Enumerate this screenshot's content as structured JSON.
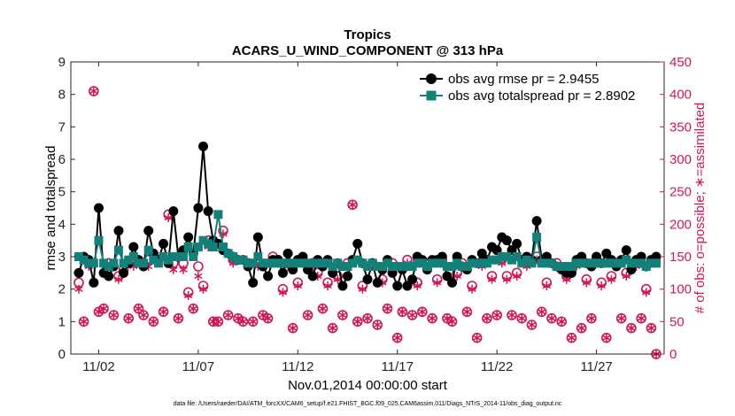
{
  "chart_data": {
    "type": "line",
    "title": "Tropics",
    "subtitle": "ACARS_U_WIND_COMPONENT @ 313 hPa",
    "xlabel": "Nov.01,2014 00:00:00 start",
    "ylabel": "rmse and totalspread",
    "ylabel_right": "# of obs: o=possible; ∗=assimilated",
    "footnote": "data file: /Users/raeder/DAI/ATM_forcXX/CAM6_setup/f.e21.FHIST_BGC.f09_025.CAM6assim.011/Diags_NTrS_2014-11/obs_diag_output.nc",
    "xlim": [
      0.6,
      30.4
    ],
    "ylim": [
      0,
      9
    ],
    "ylim_right": [
      0,
      450
    ],
    "x_ticks": [
      2,
      7,
      12,
      17,
      22,
      27
    ],
    "x_tick_labels": [
      "11/02",
      "11/07",
      "11/12",
      "11/17",
      "11/22",
      "11/27"
    ],
    "y_ticks": [
      0,
      1,
      2,
      3,
      4,
      5,
      6,
      7,
      8,
      9
    ],
    "y_tick_labels": [
      "0",
      "1",
      "2",
      "3",
      "4",
      "5",
      "6",
      "7",
      "8",
      "9"
    ],
    "y_ticks_right": [
      0,
      50,
      100,
      150,
      200,
      250,
      300,
      350,
      400,
      450
    ],
    "y_tick_labels_right": [
      "0",
      "50",
      "100",
      "150",
      "200",
      "250",
      "300",
      "350",
      "400",
      "450"
    ],
    "colors": {
      "rmse": "#000000",
      "spread": "#138079",
      "obs": "#cc1757"
    },
    "x": [
      1.0,
      1.25,
      1.5,
      1.75,
      2.0,
      2.25,
      2.5,
      2.75,
      3.0,
      3.25,
      3.5,
      3.75,
      4.0,
      4.25,
      4.5,
      4.75,
      5.0,
      5.25,
      5.5,
      5.75,
      6.0,
      6.25,
      6.5,
      6.75,
      7.0,
      7.25,
      7.5,
      7.75,
      8.0,
      8.25,
      8.5,
      8.75,
      9.0,
      9.25,
      9.5,
      9.75,
      10.0,
      10.25,
      10.5,
      10.75,
      11.0,
      11.25,
      11.5,
      11.75,
      12.0,
      12.25,
      12.5,
      12.75,
      13.0,
      13.25,
      13.5,
      13.75,
      14.0,
      14.25,
      14.5,
      14.75,
      15.0,
      15.25,
      15.5,
      15.75,
      16.0,
      16.25,
      16.5,
      16.75,
      17.0,
      17.25,
      17.5,
      17.75,
      18.0,
      18.25,
      18.5,
      18.75,
      19.0,
      19.25,
      19.5,
      19.75,
      20.0,
      20.25,
      20.5,
      20.75,
      21.0,
      21.25,
      21.5,
      21.75,
      22.0,
      22.25,
      22.5,
      22.75,
      23.0,
      23.25,
      23.5,
      23.75,
      24.0,
      24.25,
      24.5,
      24.75,
      25.0,
      25.25,
      25.5,
      25.75,
      26.0,
      26.25,
      26.5,
      26.75,
      27.0,
      27.25,
      27.5,
      27.75,
      28.0,
      28.25,
      28.5,
      28.75,
      29.0,
      29.25,
      29.5,
      29.75,
      30.0
    ],
    "series": [
      {
        "name": "obs avg rmse",
        "legend_label": "obs avg rmse pr = 2.9455",
        "axis": "left",
        "marker": "filled-circle",
        "values": [
          2.5,
          3.0,
          2.9,
          2.2,
          4.5,
          2.5,
          2.4,
          2.7,
          3.8,
          2.5,
          2.8,
          3.3,
          2.9,
          2.7,
          3.8,
          3.1,
          2.9,
          3.4,
          2.8,
          4.4,
          3.0,
          3.2,
          3.6,
          3.1,
          4.5,
          6.4,
          4.4,
          3.5,
          3.4,
          3.2,
          3.1,
          3.0,
          2.9,
          2.9,
          2.7,
          2.2,
          3.6,
          2.7,
          2.4,
          2.9,
          2.9,
          2.5,
          3.1,
          2.6,
          2.9,
          3.0,
          2.6,
          2.4,
          2.9,
          2.7,
          2.9,
          2.5,
          2.8,
          2.1,
          2.4,
          2.9,
          3.4,
          2.8,
          2.3,
          2.8,
          2.2,
          2.6,
          2.9,
          2.5,
          2.1,
          2.6,
          2.1,
          2.3,
          3.0,
          2.9,
          2.6,
          2.9,
          2.9,
          3.0,
          2.4,
          2.2,
          3.0,
          2.7,
          2.6,
          2.9,
          2.8,
          3.1,
          2.9,
          3.3,
          3.2,
          3.6,
          3.5,
          3.2,
          3.4,
          2.9,
          3.0,
          2.9,
          4.1,
          2.9,
          3.0,
          2.8,
          2.7,
          2.6,
          2.5,
          2.5,
          2.9,
          3.0,
          2.8,
          2.7,
          3.0,
          2.8,
          3.1,
          2.9,
          2.7,
          2.9,
          3.2,
          2.6,
          2.9,
          3.0,
          2.7,
          2.9,
          3.0
        ]
      },
      {
        "name": "obs avg totalspread",
        "legend_label": "obs avg totalspread pr = 2.8902",
        "axis": "left",
        "marker": "filled-square",
        "values": [
          3.0,
          2.9,
          2.8,
          2.8,
          3.5,
          2.8,
          2.7,
          2.8,
          3.2,
          2.8,
          2.9,
          3.0,
          2.8,
          2.8,
          3.2,
          2.9,
          2.8,
          3.0,
          2.9,
          3.0,
          3.0,
          3.0,
          3.3,
          3.0,
          3.3,
          3.5,
          3.4,
          3.3,
          4.3,
          3.3,
          3.1,
          3.0,
          2.9,
          2.9,
          2.8,
          2.8,
          3.0,
          2.8,
          2.8,
          2.8,
          2.8,
          2.8,
          2.8,
          2.8,
          2.8,
          2.8,
          2.8,
          2.8,
          2.8,
          2.8,
          2.8,
          2.7,
          2.8,
          2.7,
          2.7,
          2.8,
          2.9,
          2.8,
          2.7,
          2.8,
          2.7,
          2.7,
          2.8,
          2.7,
          2.7,
          2.7,
          2.7,
          2.7,
          2.8,
          2.8,
          2.7,
          2.8,
          2.8,
          2.8,
          2.7,
          2.7,
          2.8,
          2.7,
          2.7,
          2.8,
          2.8,
          2.8,
          2.8,
          2.9,
          2.9,
          3.0,
          3.0,
          2.9,
          3.0,
          2.8,
          2.9,
          2.8,
          3.6,
          2.8,
          2.8,
          2.8,
          2.7,
          2.7,
          2.7,
          2.7,
          2.8,
          2.8,
          2.8,
          2.8,
          2.8,
          2.8,
          2.8,
          2.8,
          2.8,
          2.8,
          2.9,
          2.8,
          2.8,
          2.8,
          2.7,
          2.8,
          2.8
        ]
      },
      {
        "name": "obs possible",
        "axis": "right",
        "marker": "open-circle",
        "values": [
          110,
          50,
          140,
          405,
          65,
          70,
          140,
          60,
          120,
          130,
          55,
          145,
          70,
          60,
          145,
          50,
          145,
          65,
          215,
          140,
          55,
          140,
          95,
          70,
          135,
          105,
          175,
          50,
          50,
          190,
          60,
          145,
          55,
          50,
          140,
          50,
          140,
          60,
          55,
          150,
          145,
          100,
          140,
          40,
          110,
          145,
          60,
          140,
          125,
          70,
          110,
          40,
          120,
          60,
          140,
          230,
          50,
          105,
          55,
          140,
          45,
          115,
          70,
          140,
          25,
          65,
          145,
          60,
          110,
          65,
          140,
          55,
          115,
          145,
          55,
          50,
          125,
          140,
          65,
          105,
          25,
          140,
          55,
          120,
          60,
          145,
          120,
          60,
          125,
          55,
          140,
          45,
          150,
          65,
          110,
          55,
          140,
          50,
          120,
          25,
          140,
          40,
          115,
          55,
          145,
          110,
          25,
          120,
          140,
          55,
          125,
          40,
          140,
          55,
          100,
          40,
          0
        ]
      },
      {
        "name": "obs assimilated",
        "axis": "right",
        "marker": "asterisk",
        "values": [
          100,
          50,
          135,
          405,
          65,
          70,
          135,
          60,
          115,
          125,
          55,
          135,
          70,
          60,
          135,
          50,
          140,
          65,
          210,
          130,
          55,
          130,
          90,
          70,
          120,
          100,
          165,
          50,
          50,
          185,
          60,
          140,
          55,
          50,
          135,
          50,
          135,
          60,
          55,
          145,
          140,
          95,
          135,
          40,
          105,
          140,
          60,
          135,
          120,
          70,
          105,
          40,
          115,
          60,
          135,
          230,
          50,
          100,
          55,
          135,
          45,
          110,
          70,
          135,
          25,
          65,
          140,
          60,
          105,
          65,
          135,
          55,
          110,
          140,
          55,
          50,
          120,
          135,
          65,
          100,
          25,
          135,
          55,
          115,
          60,
          140,
          115,
          60,
          120,
          55,
          135,
          45,
          145,
          65,
          105,
          55,
          135,
          50,
          115,
          25,
          135,
          40,
          110,
          55,
          140,
          105,
          25,
          115,
          135,
          55,
          120,
          40,
          135,
          55,
          95,
          40,
          0
        ]
      }
    ]
  }
}
